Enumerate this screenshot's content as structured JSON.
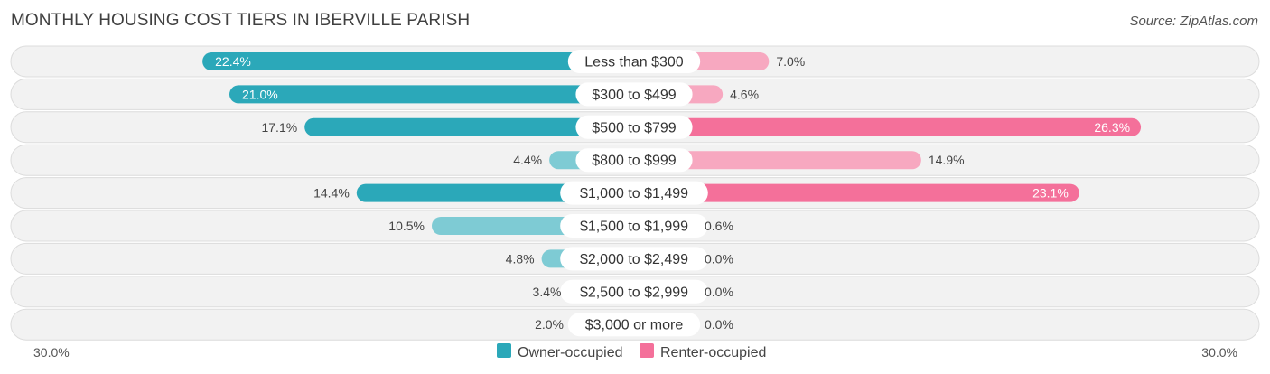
{
  "header": {
    "title": "MONTHLY HOUSING COST TIERS IN IBERVILLE PARISH",
    "source": "Source: ZipAtlas.com"
  },
  "colors": {
    "owner_strong": "#2ba8b9",
    "owner_light": "#7ecbd4",
    "renter_strong": "#f4709a",
    "renter_light": "#f7a8c0"
  },
  "chart_data": {
    "type": "bar",
    "orientation": "diverging-horizontal",
    "categories": [
      "Less than $300",
      "$300 to $499",
      "$500 to $799",
      "$800 to $999",
      "$1,000 to $1,499",
      "$1,500 to $1,999",
      "$2,000 to $2,499",
      "$2,500 to $2,999",
      "$3,000 or more"
    ],
    "series": [
      {
        "name": "Owner-occupied",
        "values": [
          22.4,
          21.0,
          17.1,
          4.4,
          14.4,
          10.5,
          4.8,
          3.4,
          2.0
        ],
        "labels": [
          "22.4%",
          "21.0%",
          "17.1%",
          "4.4%",
          "14.4%",
          "10.5%",
          "4.8%",
          "3.4%",
          "2.0%"
        ]
      },
      {
        "name": "Renter-occupied",
        "values": [
          7.0,
          4.6,
          26.3,
          14.9,
          23.1,
          0.6,
          0.0,
          0.0,
          0.0
        ],
        "labels": [
          "7.0%",
          "4.6%",
          "26.3%",
          "14.9%",
          "23.1%",
          "0.6%",
          "0.0%",
          "0.0%",
          "0.0%"
        ]
      }
    ],
    "xlim": [
      -30,
      30
    ],
    "axis_labels": {
      "left": "30.0%",
      "right": "30.0%"
    },
    "legend": {
      "position": "bottom-center"
    }
  }
}
